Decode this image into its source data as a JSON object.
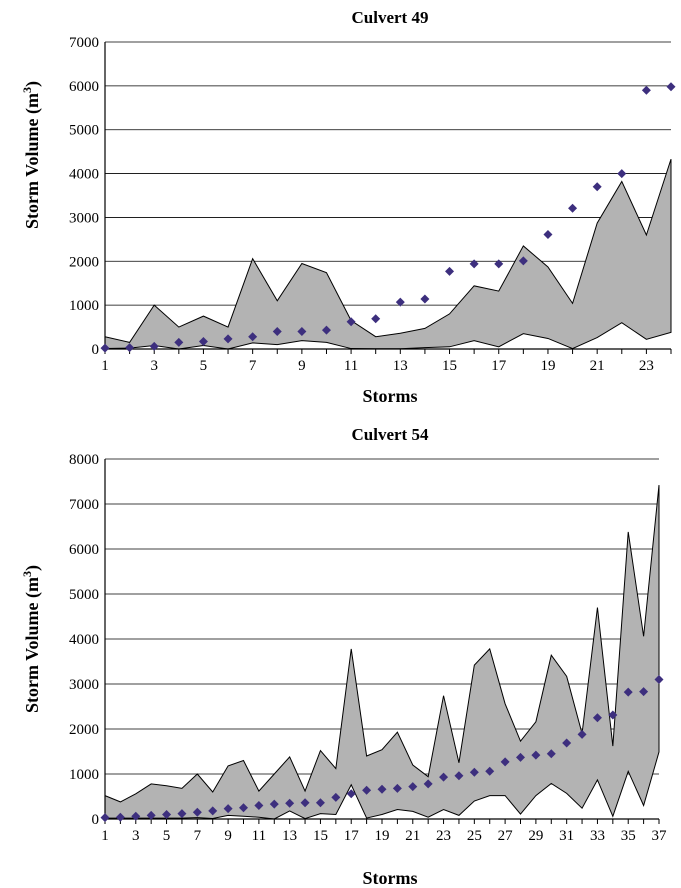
{
  "chart_data": [
    {
      "type": "scatter",
      "title": "Culvert 49",
      "xlabel": "Storms",
      "ylabel": "Storm Volume (m",
      "ylabel_sup": "3",
      "ylabel_close": ")",
      "x_tick_labels": [
        "1",
        "3",
        "5",
        "7",
        "9",
        "11",
        "13",
        "15",
        "17",
        "19",
        "21",
        "23"
      ],
      "y_tick_labels": [
        "0",
        "1000",
        "2000",
        "3000",
        "4000",
        "5000",
        "6000",
        "7000"
      ],
      "xlim": [
        1,
        24
      ],
      "ylim": [
        0,
        7000
      ],
      "grid": "horizontal",
      "colors": {
        "band_fill": "#b3b3b3",
        "marker": "#3d2f7e"
      },
      "x": [
        1,
        2,
        3,
        4,
        5,
        6,
        7,
        8,
        9,
        10,
        11,
        12,
        13,
        14,
        15,
        16,
        17,
        18,
        19,
        20,
        21,
        22,
        23,
        24
      ],
      "series": [
        {
          "values": [
            20,
            30,
            60,
            150,
            170,
            230,
            280,
            400,
            400,
            430,
            620,
            690,
            1070,
            1140,
            1770,
            1940,
            1940,
            2010,
            2610,
            3210,
            3700,
            4000,
            5900,
            5980
          ]
        }
      ],
      "band_upper": [
        280,
        150,
        1000,
        500,
        750,
        500,
        2060,
        1100,
        1950,
        1740,
        650,
        280,
        360,
        470,
        800,
        1440,
        1320,
        2350,
        1870,
        1040,
        2870,
        3820,
        2600,
        4330
      ],
      "band_lower": [
        10,
        20,
        80,
        0,
        80,
        0,
        140,
        100,
        190,
        150,
        10,
        5,
        5,
        30,
        50,
        190,
        50,
        350,
        240,
        10,
        260,
        600,
        220,
        380
      ]
    },
    {
      "type": "scatter",
      "title": "Culvert 54",
      "xlabel": "Storms",
      "ylabel": "Storm Volume (m",
      "ylabel_sup": "3",
      "ylabel_close": ")",
      "x_tick_labels": [
        "1",
        "3",
        "5",
        "7",
        "9",
        "11",
        "13",
        "15",
        "17",
        "19",
        "21",
        "23",
        "25",
        "27",
        "29",
        "31",
        "33",
        "35",
        "37"
      ],
      "y_tick_labels": [
        "0",
        "1000",
        "2000",
        "3000",
        "4000",
        "5000",
        "6000",
        "7000",
        "8000"
      ],
      "xlim": [
        1,
        37
      ],
      "ylim": [
        0,
        8000
      ],
      "grid": "horizontal",
      "colors": {
        "band_fill": "#b3b3b3",
        "marker": "#3d2f7e"
      },
      "x": [
        1,
        2,
        3,
        4,
        5,
        6,
        7,
        8,
        9,
        10,
        11,
        12,
        13,
        14,
        15,
        16,
        17,
        18,
        19,
        20,
        21,
        22,
        23,
        24,
        25,
        26,
        27,
        28,
        29,
        30,
        31,
        32,
        33,
        34,
        35,
        36,
        37
      ],
      "series": [
        {
          "values": [
            30,
            40,
            60,
            80,
            100,
            120,
            150,
            180,
            230,
            250,
            300,
            330,
            350,
            360,
            360,
            480,
            560,
            640,
            660,
            680,
            720,
            780,
            930,
            960,
            1040,
            1060,
            1270,
            1370,
            1420,
            1450,
            1690,
            1880,
            2250,
            2310,
            2820,
            2830,
            3100
          ]
        }
      ],
      "band_upper": [
        520,
        380,
        560,
        780,
        740,
        680,
        1000,
        600,
        1180,
        1300,
        620,
        1000,
        1380,
        620,
        1520,
        1120,
        3780,
        1400,
        1540,
        1930,
        1200,
        940,
        2740,
        1250,
        3420,
        3780,
        2560,
        1730,
        2160,
        3640,
        3170,
        1900,
        4700,
        1620,
        6380,
        4060,
        7420
      ],
      "band_lower": [
        20,
        20,
        20,
        20,
        20,
        20,
        30,
        10,
        80,
        60,
        40,
        0,
        180,
        10,
        120,
        100,
        760,
        20,
        100,
        210,
        170,
        40,
        210,
        80,
        400,
        520,
        520,
        110,
        520,
        790,
        570,
        240,
        870,
        60,
        1060,
        300,
        1490
      ]
    }
  ]
}
